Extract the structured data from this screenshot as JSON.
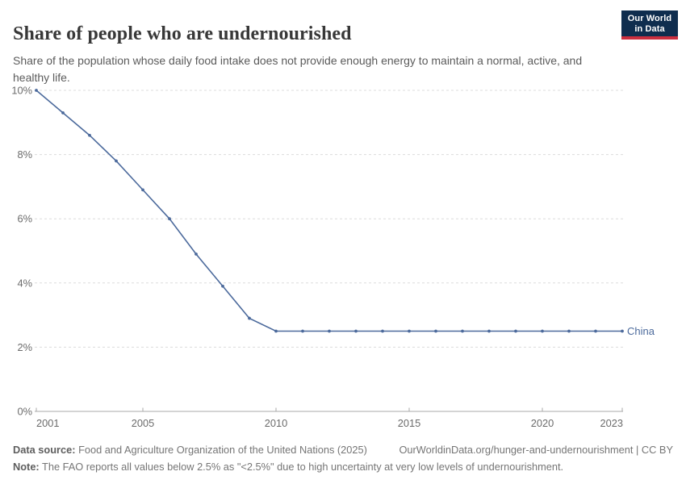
{
  "header": {
    "title": "Share of people who are undernourished",
    "subtitle": "Share of the population whose daily food intake does not provide enough energy to maintain a normal, active, and healthy life.",
    "logo": {
      "line1": "Our World",
      "line2": "in Data"
    }
  },
  "chart_data": {
    "type": "line",
    "x": [
      2001,
      2002,
      2003,
      2004,
      2005,
      2006,
      2007,
      2008,
      2009,
      2010,
      2011,
      2012,
      2013,
      2014,
      2015,
      2016,
      2017,
      2018,
      2019,
      2020,
      2021,
      2022,
      2023
    ],
    "series": [
      {
        "name": "China",
        "values": [
          10.0,
          9.3,
          8.6,
          7.8,
          6.9,
          6.0,
          4.9,
          3.9,
          2.9,
          2.5,
          2.5,
          2.5,
          2.5,
          2.5,
          2.5,
          2.5,
          2.5,
          2.5,
          2.5,
          2.5,
          2.5,
          2.5,
          2.5
        ],
        "color": "#4C6A9C"
      }
    ],
    "title": "Share of people who are undernourished",
    "xlabel": "",
    "ylabel": "",
    "xlim": [
      2001,
      2023
    ],
    "ylim": [
      0,
      10
    ],
    "x_ticks": [
      2001,
      2005,
      2010,
      2015,
      2020,
      2023
    ],
    "y_ticks": [
      0,
      2,
      4,
      6,
      8,
      10
    ],
    "y_tick_suffix": "%",
    "grid": "horizontal-dashed",
    "legend_position": "end-of-line-label"
  },
  "colors": {
    "line": "#4C6A9C",
    "grid": "#dcdcdc",
    "axis": "#a8a8a8",
    "tick_text": "#6b6b6b",
    "logo_bg": "#0f2d4e",
    "logo_accent": "#cb2f3f"
  },
  "footer": {
    "data_source_label": "Data source:",
    "data_source_text": " Food and Agriculture Organization of the United Nations (2025)",
    "link": "OurWorldinData.org/hunger-and-undernourishment | CC BY",
    "note_label": "Note:",
    "note_text": " The FAO reports all values below 2.5% as \"<2.5%\" due to high uncertainty at very low levels of undernourishment."
  }
}
